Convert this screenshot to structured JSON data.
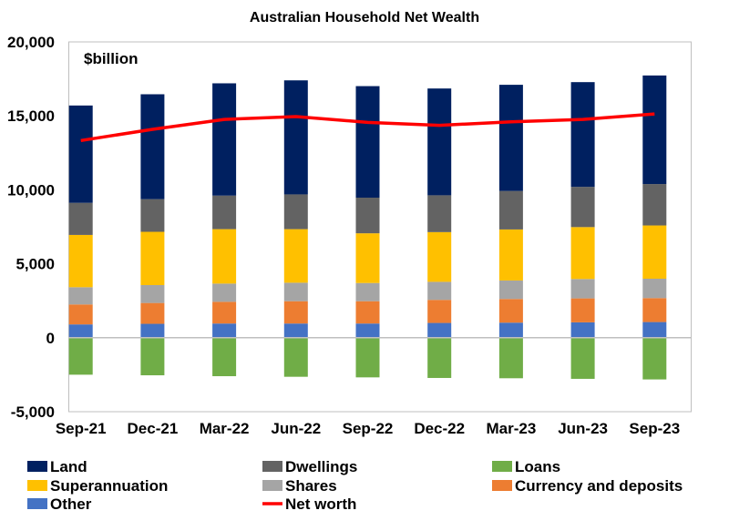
{
  "chart_data": {
    "type": "bar",
    "stacked": true,
    "title": "Australian Household Net Wealth",
    "unit_label": "$billion",
    "ylim": [
      -5000,
      20000
    ],
    "yticks": [
      "20,000",
      "15,000",
      "10,000",
      "5,000",
      "0",
      "-5,000"
    ],
    "ytick_values": [
      20000,
      15000,
      10000,
      5000,
      0,
      -5000
    ],
    "grid": false,
    "legend_placement": "bottom",
    "categories": [
      "Sep-21",
      "Dec-21",
      "Mar-22",
      "Jun-22",
      "Sep-22",
      "Dec-22",
      "Mar-23",
      "Jun-23",
      "Sep-23"
    ],
    "series": [
      {
        "name": "Other",
        "color": "#4472c4",
        "values": [
          900,
          940,
          960,
          960,
          960,
          1000,
          1020,
          1040,
          1060
        ]
      },
      {
        "name": "Currency and deposits",
        "color": "#ed7d31",
        "values": [
          1350,
          1410,
          1470,
          1510,
          1510,
          1560,
          1600,
          1620,
          1620
        ]
      },
      {
        "name": "Shares",
        "color": "#a5a5a5",
        "values": [
          1165,
          1210,
          1230,
          1250,
          1230,
          1220,
          1250,
          1310,
          1310
        ]
      },
      {
        "name": "Superannuation",
        "color": "#ffc000",
        "values": [
          3535,
          3600,
          3680,
          3620,
          3360,
          3360,
          3450,
          3510,
          3600
        ]
      },
      {
        "name": "Dwellings",
        "color": "#636363",
        "values": [
          2170,
          2210,
          2270,
          2350,
          2410,
          2490,
          2600,
          2720,
          2800
        ]
      },
      {
        "name": "Land",
        "color": "#002060",
        "values": [
          6580,
          7090,
          7590,
          7710,
          7540,
          7220,
          7180,
          7080,
          7340
        ]
      },
      {
        "name": "Loans",
        "color": "#70ad47",
        "values": [
          -2500,
          -2540,
          -2600,
          -2640,
          -2680,
          -2720,
          -2740,
          -2780,
          -2820
        ]
      }
    ],
    "line_series": {
      "name": "Net worth",
      "color": "#ff0000",
      "values": [
        13330,
        14090,
        14760,
        14950,
        14560,
        14360,
        14600,
        14760,
        15130
      ]
    },
    "legend": [
      {
        "name": "Land",
        "color": "#002060"
      },
      {
        "name": "Dwellings",
        "color": "#636363"
      },
      {
        "name": "Loans",
        "color": "#70ad47"
      },
      {
        "name": "Superannuation",
        "color": "#ffc000"
      },
      {
        "name": "Shares",
        "color": "#a5a5a5"
      },
      {
        "name": "Currency and deposits",
        "color": "#ed7d31"
      },
      {
        "name": "Other",
        "color": "#4472c4"
      },
      {
        "name": "Net worth",
        "color": "#ff0000",
        "line": true
      }
    ]
  }
}
